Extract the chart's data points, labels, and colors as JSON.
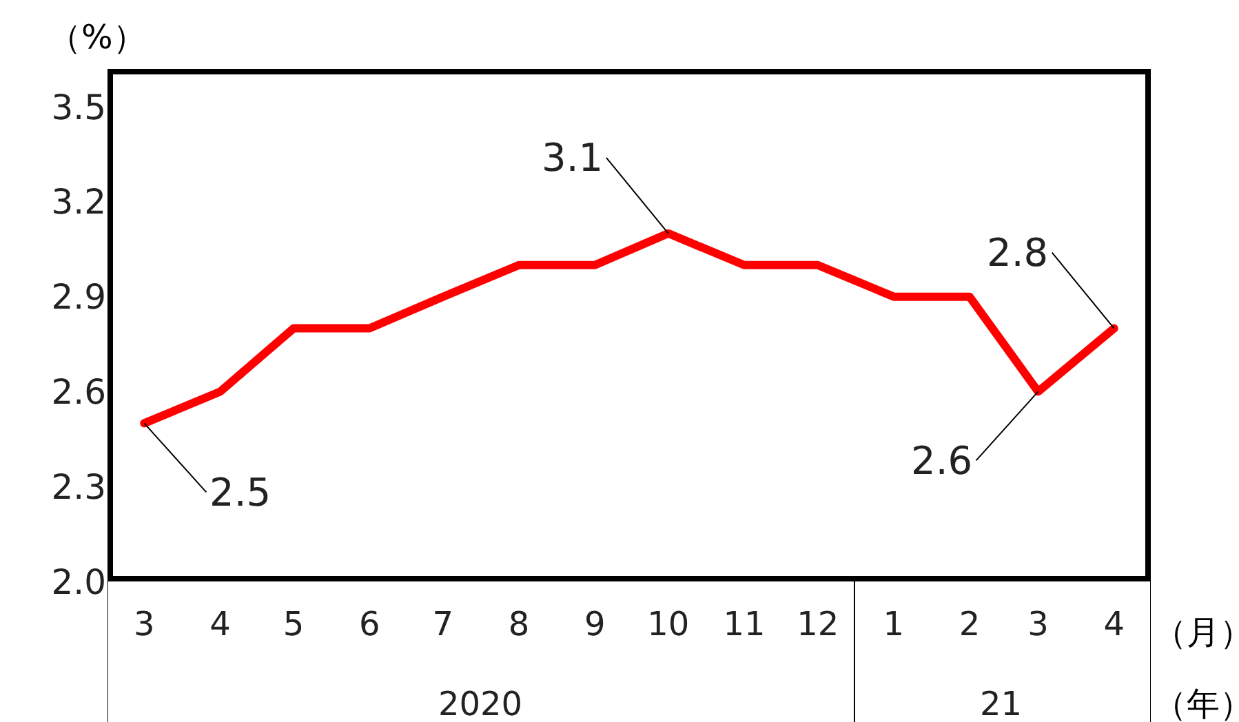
{
  "chart_data": {
    "type": "line",
    "ylabel": "（%）",
    "xlabel": "（月）",
    "x": [
      "2020-03",
      "2020-04",
      "2020-05",
      "2020-06",
      "2020-07",
      "2020-08",
      "2020-09",
      "2020-10",
      "2020-11",
      "2020-12",
      "2021-01",
      "2021-02",
      "2021-03",
      "2021-04"
    ],
    "series": [
      {
        "color": "#ff0000",
        "values": [
          2.5,
          2.6,
          2.8,
          2.8,
          2.9,
          3.0,
          3.0,
          3.1,
          3.0,
          3.0,
          2.9,
          2.9,
          2.6,
          2.8
        ],
        "value_labels": [
          "2.5",
          null,
          null,
          null,
          null,
          null,
          null,
          "3.1",
          null,
          null,
          null,
          null,
          "2.6",
          "2.8"
        ]
      }
    ],
    "xlim": [
      "2020-02-15",
      "2021-04-16"
    ],
    "xticks": [
      {
        "value": "2020-03",
        "label": "3"
      },
      {
        "value": "2020-04",
        "label": "4"
      },
      {
        "value": "2020-05",
        "label": "5"
      },
      {
        "value": "2020-06",
        "label": "6"
      },
      {
        "value": "2020-07",
        "label": "7"
      },
      {
        "value": "2020-08",
        "label": "8"
      },
      {
        "value": "2020-09",
        "label": "9"
      },
      {
        "value": "2020-10",
        "label": "10"
      },
      {
        "value": "2020-11",
        "label": "11"
      },
      {
        "value": "2020-12",
        "label": "12"
      },
      {
        "value": "2021-01",
        "label": "1"
      },
      {
        "value": "2021-02",
        "label": "2"
      },
      {
        "value": "2021-03",
        "label": "3"
      },
      {
        "value": "2021-04",
        "label": "4"
      }
    ],
    "ylim": [
      2.0,
      3.62
    ],
    "yticks": [
      {
        "value": 2.0,
        "label": "2.0"
      },
      {
        "value": 2.3,
        "label": "2.3"
      },
      {
        "value": 2.6,
        "label": "2.6"
      },
      {
        "value": 2.9,
        "label": "2.9"
      },
      {
        "value": 3.2,
        "label": "3.2"
      },
      {
        "value": 3.5,
        "label": "3.5"
      }
    ],
    "marker": "none",
    "line_style": "solid",
    "annotations": [
      "2020",
      "21",
      "（年）"
    ]
  }
}
